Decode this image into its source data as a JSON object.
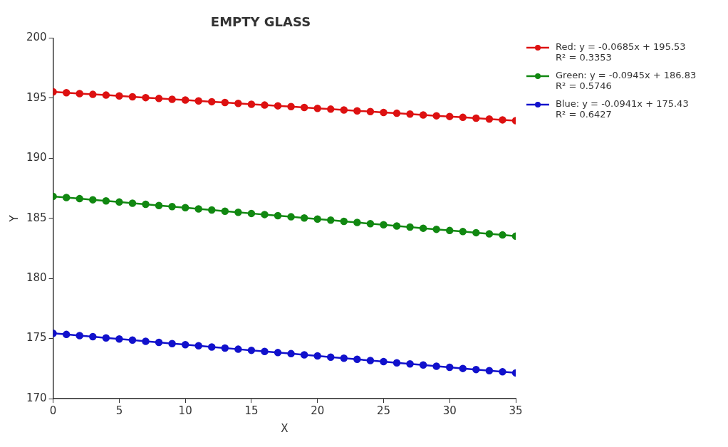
{
  "chart_data": {
    "type": "line",
    "title": "EMPTY GLASS",
    "xlabel": "X",
    "ylabel": "Y",
    "x": [
      0,
      1,
      2,
      3,
      4,
      5,
      6,
      7,
      8,
      9,
      10,
      11,
      12,
      13,
      14,
      15,
      16,
      17,
      18,
      19,
      20,
      21,
      22,
      23,
      24,
      25,
      26,
      27,
      28,
      29,
      30,
      31,
      32,
      33,
      34,
      35
    ],
    "xlim": [
      0,
      35
    ],
    "xticks": [
      0,
      5,
      10,
      15,
      20,
      25,
      30,
      35
    ],
    "ylim": [
      170,
      200
    ],
    "yticks": [
      170,
      175,
      180,
      185,
      190,
      195,
      200
    ],
    "marker": "circle",
    "line_style": "solid",
    "legend": "right",
    "series": [
      {
        "name": "Red: y = -0.0685x + 195.53\nR² = 0.3353",
        "color": "#dd1111",
        "values": [
          195.53,
          195.46,
          195.39,
          195.32,
          195.26,
          195.19,
          195.12,
          195.05,
          194.98,
          194.91,
          194.85,
          194.78,
          194.71,
          194.64,
          194.57,
          194.5,
          194.43,
          194.37,
          194.3,
          194.23,
          194.16,
          194.09,
          194.02,
          193.95,
          193.89,
          193.82,
          193.75,
          193.68,
          193.61,
          193.54,
          193.48,
          193.41,
          193.34,
          193.27,
          193.2,
          193.13
        ]
      },
      {
        "name": "Green: y = -0.0945x + 186.83\nR² = 0.5746",
        "color": "#118811",
        "values": [
          186.83,
          186.74,
          186.64,
          186.55,
          186.45,
          186.36,
          186.26,
          186.17,
          186.07,
          185.98,
          185.89,
          185.79,
          185.7,
          185.6,
          185.51,
          185.41,
          185.32,
          185.22,
          185.13,
          185.03,
          184.94,
          184.85,
          184.75,
          184.66,
          184.56,
          184.47,
          184.37,
          184.28,
          184.18,
          184.09,
          183.99,
          183.9,
          183.81,
          183.71,
          183.62,
          183.52
        ]
      },
      {
        "name": "Blue: y = -0.0941x + 175.43\nR² = 0.6427",
        "color": "#1111cc",
        "values": [
          175.43,
          175.34,
          175.24,
          175.15,
          175.05,
          174.96,
          174.87,
          174.77,
          174.68,
          174.58,
          174.49,
          174.4,
          174.3,
          174.21,
          174.11,
          174.02,
          173.92,
          173.83,
          173.74,
          173.64,
          173.55,
          173.45,
          173.36,
          173.27,
          173.17,
          173.08,
          172.98,
          172.89,
          172.8,
          172.7,
          172.61,
          172.51,
          172.42,
          172.33,
          172.23,
          172.14
        ]
      }
    ]
  }
}
